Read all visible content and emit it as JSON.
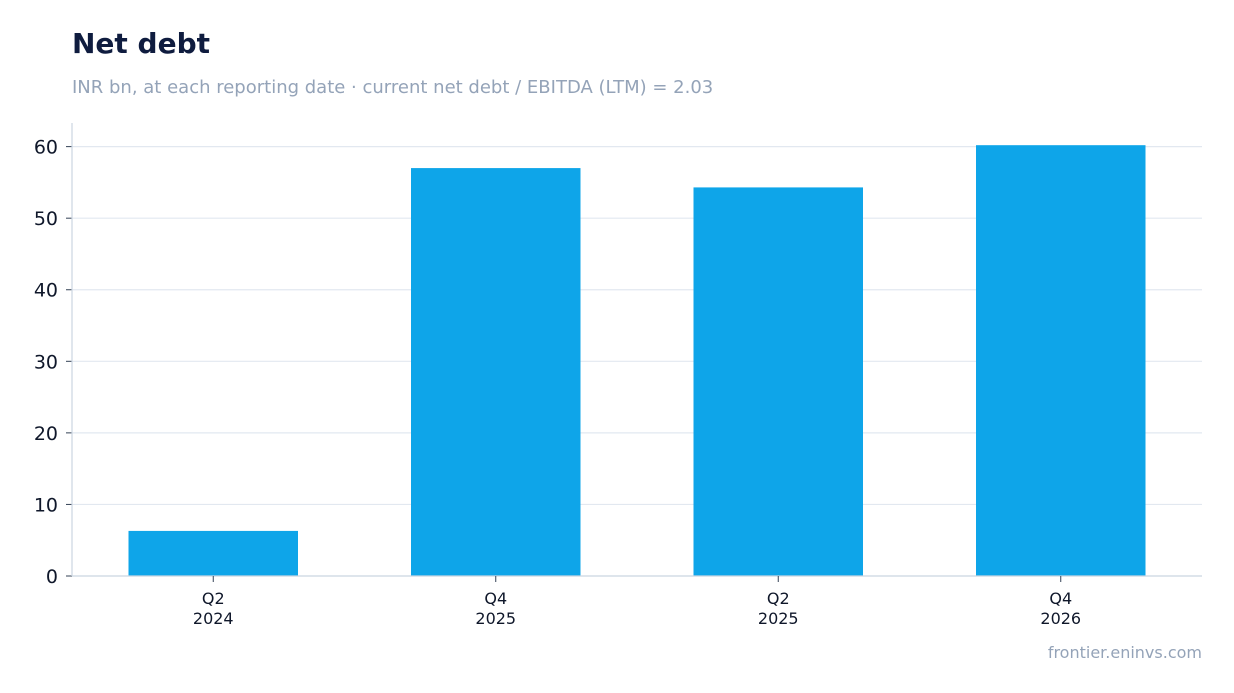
{
  "chart_data": {
    "type": "bar",
    "title": "Net debt",
    "subtitle": "INR bn, at each reporting date · current net debt / EBITDA (LTM) = 2.03",
    "categories": [
      [
        "Q2",
        "2024"
      ],
      [
        "Q4",
        "2025"
      ],
      [
        "Q2",
        "2025"
      ],
      [
        "Q4",
        "2026"
      ]
    ],
    "values": [
      6.3,
      57.0,
      54.3,
      60.2
    ],
    "ylim": [
      0,
      63.3
    ],
    "yticks": [
      0,
      10,
      20,
      30,
      40,
      50,
      60
    ],
    "xlabel": "",
    "ylabel": "",
    "grid": true,
    "bar_color": "#0ea5e9",
    "grid_color": "#e2e8f0",
    "axis_color": "#cbd5e1",
    "tick_label_color": "#0f172a"
  },
  "footer": {
    "source": "frontier.eninvs.com"
  }
}
